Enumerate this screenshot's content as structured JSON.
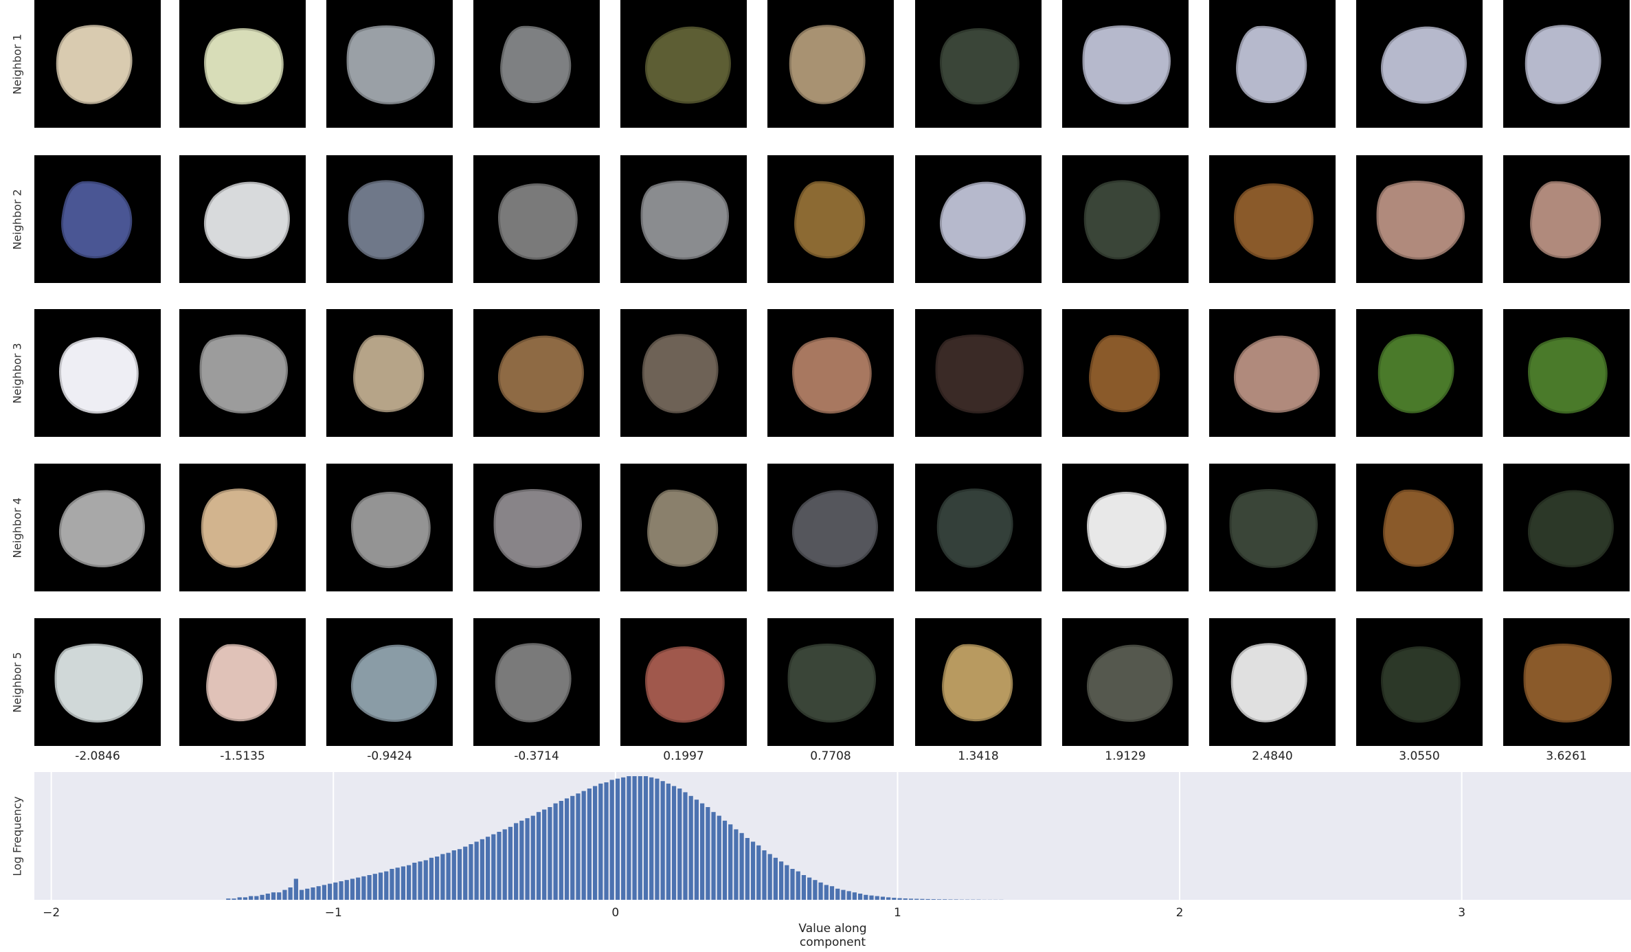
{
  "figure": {
    "row_labels": [
      "Neighbor 1",
      "Neighbor 2",
      "Neighbor 3",
      "Neighbor 4",
      "Neighbor 5"
    ],
    "column_values": [
      "-2.0846",
      "-1.5135",
      "-0.9424",
      "-0.3714",
      "0.1997",
      "0.7708",
      "1.3418",
      "1.9129",
      "2.4840",
      "3.0550",
      "3.6261"
    ],
    "tiles": [
      [
        "#d9cbb0",
        "#d8ddb8",
        "#9aa0a6",
        "#7e8082",
        "#5d5e34",
        "#a89272",
        "#3a4538",
        "#b6b9cc",
        "#b6b9cc",
        "#b6b9cc",
        "#b6b9cc"
      ],
      [
        "#4a5694",
        "#d8dadc",
        "#6f7889",
        "#7a7a7a",
        "#8a8c8f",
        "#8c6a33",
        "#b6b9cc",
        "#3a4538",
        "#8a5a2a",
        "#b08a7c",
        "#b08a7c"
      ],
      [
        "#eeeef4",
        "#9c9c9c",
        "#b6a488",
        "#8e6a44",
        "#6e6256",
        "#a87860",
        "#3a2a26",
        "#8a5a2a",
        "#b08a7c",
        "#4a7a2a",
        "#4a7a2a"
      ],
      [
        "#a8a8a8",
        "#d2b48e",
        "#949494",
        "#888488",
        "#8a806c",
        "#55565c",
        "#34403a",
        "#e8e8e8",
        "#3a4538",
        "#8a5a2a",
        "#2c3828"
      ],
      [
        "#d0d8d8",
        "#e0c2b8",
        "#8a9ca6",
        "#7a7a7a",
        "#a0584c",
        "#3a4538",
        "#b89a60",
        "#55584e",
        "#e0e0e0",
        "#2c3828",
        "#8a5a2a"
      ]
    ]
  },
  "chart_data": {
    "type": "bar",
    "xlabel": "Value along component",
    "ylabel": "Log Frequency",
    "xlim": [
      -2.06,
      3.6
    ],
    "xticks": [
      "−2",
      "−1",
      "0",
      "1",
      "2",
      "3"
    ],
    "xtick_values": [
      -2,
      -1,
      0,
      1,
      2,
      3
    ],
    "grid": true,
    "bar_color": "#4c72b0",
    "background_color": "#e9eaf2",
    "bin_width": 0.02,
    "bins": [
      {
        "x": -1.38,
        "v": 0.01
      },
      {
        "x": -1.36,
        "v": 0.01
      },
      {
        "x": -1.34,
        "v": 0.02
      },
      {
        "x": -1.32,
        "v": 0.02
      },
      {
        "x": -1.3,
        "v": 0.03
      },
      {
        "x": -1.28,
        "v": 0.03
      },
      {
        "x": -1.26,
        "v": 0.04
      },
      {
        "x": -1.24,
        "v": 0.05
      },
      {
        "x": -1.22,
        "v": 0.06
      },
      {
        "x": -1.2,
        "v": 0.06
      },
      {
        "x": -1.18,
        "v": 0.08
      },
      {
        "x": -1.16,
        "v": 0.1
      },
      {
        "x": -1.14,
        "v": 0.17
      },
      {
        "x": -1.12,
        "v": 0.08
      },
      {
        "x": -1.1,
        "v": 0.09
      },
      {
        "x": -1.08,
        "v": 0.1
      },
      {
        "x": -1.06,
        "v": 0.11
      },
      {
        "x": -1.04,
        "v": 0.12
      },
      {
        "x": -1.02,
        "v": 0.13
      },
      {
        "x": -1.0,
        "v": 0.14
      },
      {
        "x": -0.98,
        "v": 0.15
      },
      {
        "x": -0.96,
        "v": 0.16
      },
      {
        "x": -0.94,
        "v": 0.17
      },
      {
        "x": -0.92,
        "v": 0.18
      },
      {
        "x": -0.9,
        "v": 0.19
      },
      {
        "x": -0.88,
        "v": 0.2
      },
      {
        "x": -0.86,
        "v": 0.21
      },
      {
        "x": -0.84,
        "v": 0.22
      },
      {
        "x": -0.82,
        "v": 0.23
      },
      {
        "x": -0.8,
        "v": 0.25
      },
      {
        "x": -0.78,
        "v": 0.26
      },
      {
        "x": -0.76,
        "v": 0.27
      },
      {
        "x": -0.74,
        "v": 0.28
      },
      {
        "x": -0.72,
        "v": 0.3
      },
      {
        "x": -0.7,
        "v": 0.31
      },
      {
        "x": -0.68,
        "v": 0.32
      },
      {
        "x": -0.66,
        "v": 0.34
      },
      {
        "x": -0.64,
        "v": 0.35
      },
      {
        "x": -0.62,
        "v": 0.37
      },
      {
        "x": -0.6,
        "v": 0.38
      },
      {
        "x": -0.58,
        "v": 0.4
      },
      {
        "x": -0.56,
        "v": 0.41
      },
      {
        "x": -0.54,
        "v": 0.43
      },
      {
        "x": -0.52,
        "v": 0.45
      },
      {
        "x": -0.5,
        "v": 0.47
      },
      {
        "x": -0.48,
        "v": 0.49
      },
      {
        "x": -0.46,
        "v": 0.51
      },
      {
        "x": -0.44,
        "v": 0.53
      },
      {
        "x": -0.42,
        "v": 0.55
      },
      {
        "x": -0.4,
        "v": 0.57
      },
      {
        "x": -0.38,
        "v": 0.59
      },
      {
        "x": -0.36,
        "v": 0.62
      },
      {
        "x": -0.34,
        "v": 0.64
      },
      {
        "x": -0.32,
        "v": 0.66
      },
      {
        "x": -0.3,
        "v": 0.68
      },
      {
        "x": -0.28,
        "v": 0.71
      },
      {
        "x": -0.26,
        "v": 0.73
      },
      {
        "x": -0.24,
        "v": 0.75
      },
      {
        "x": -0.22,
        "v": 0.78
      },
      {
        "x": -0.2,
        "v": 0.8
      },
      {
        "x": -0.18,
        "v": 0.82
      },
      {
        "x": -0.16,
        "v": 0.84
      },
      {
        "x": -0.14,
        "v": 0.86
      },
      {
        "x": -0.12,
        "v": 0.88
      },
      {
        "x": -0.1,
        "v": 0.9
      },
      {
        "x": -0.08,
        "v": 0.92
      },
      {
        "x": -0.06,
        "v": 0.94
      },
      {
        "x": -0.04,
        "v": 0.95
      },
      {
        "x": -0.02,
        "v": 0.97
      },
      {
        "x": 0.0,
        "v": 0.98
      },
      {
        "x": 0.02,
        "v": 0.99
      },
      {
        "x": 0.04,
        "v": 1.0
      },
      {
        "x": 0.06,
        "v": 1.0
      },
      {
        "x": 0.08,
        "v": 1.0
      },
      {
        "x": 0.1,
        "v": 1.0
      },
      {
        "x": 0.12,
        "v": 0.99
      },
      {
        "x": 0.14,
        "v": 0.98
      },
      {
        "x": 0.16,
        "v": 0.96
      },
      {
        "x": 0.18,
        "v": 0.94
      },
      {
        "x": 0.2,
        "v": 0.92
      },
      {
        "x": 0.22,
        "v": 0.9
      },
      {
        "x": 0.24,
        "v": 0.87
      },
      {
        "x": 0.26,
        "v": 0.84
      },
      {
        "x": 0.28,
        "v": 0.81
      },
      {
        "x": 0.3,
        "v": 0.78
      },
      {
        "x": 0.32,
        "v": 0.75
      },
      {
        "x": 0.34,
        "v": 0.71
      },
      {
        "x": 0.36,
        "v": 0.68
      },
      {
        "x": 0.38,
        "v": 0.64
      },
      {
        "x": 0.4,
        "v": 0.61
      },
      {
        "x": 0.42,
        "v": 0.57
      },
      {
        "x": 0.44,
        "v": 0.54
      },
      {
        "x": 0.46,
        "v": 0.5
      },
      {
        "x": 0.48,
        "v": 0.47
      },
      {
        "x": 0.5,
        "v": 0.44
      },
      {
        "x": 0.52,
        "v": 0.4
      },
      {
        "x": 0.54,
        "v": 0.37
      },
      {
        "x": 0.56,
        "v": 0.34
      },
      {
        "x": 0.58,
        "v": 0.31
      },
      {
        "x": 0.6,
        "v": 0.28
      },
      {
        "x": 0.62,
        "v": 0.25
      },
      {
        "x": 0.64,
        "v": 0.23
      },
      {
        "x": 0.66,
        "v": 0.2
      },
      {
        "x": 0.68,
        "v": 0.18
      },
      {
        "x": 0.7,
        "v": 0.16
      },
      {
        "x": 0.72,
        "v": 0.14
      },
      {
        "x": 0.74,
        "v": 0.12
      },
      {
        "x": 0.76,
        "v": 0.11
      },
      {
        "x": 0.78,
        "v": 0.09
      },
      {
        "x": 0.8,
        "v": 0.08
      },
      {
        "x": 0.82,
        "v": 0.07
      },
      {
        "x": 0.84,
        "v": 0.06
      },
      {
        "x": 0.86,
        "v": 0.05
      },
      {
        "x": 0.88,
        "v": 0.04
      },
      {
        "x": 0.9,
        "v": 0.035
      },
      {
        "x": 0.92,
        "v": 0.03
      },
      {
        "x": 0.94,
        "v": 0.025
      },
      {
        "x": 0.96,
        "v": 0.02
      },
      {
        "x": 0.98,
        "v": 0.016
      },
      {
        "x": 1.0,
        "v": 0.013
      },
      {
        "x": 1.02,
        "v": 0.011
      },
      {
        "x": 1.04,
        "v": 0.009
      },
      {
        "x": 1.06,
        "v": 0.008
      },
      {
        "x": 1.08,
        "v": 0.007
      },
      {
        "x": 1.1,
        "v": 0.006
      },
      {
        "x": 1.12,
        "v": 0.005
      },
      {
        "x": 1.14,
        "v": 0.004
      },
      {
        "x": 1.16,
        "v": 0.004
      },
      {
        "x": 1.18,
        "v": 0.003
      },
      {
        "x": 1.2,
        "v": 0.003
      },
      {
        "x": 1.22,
        "v": 0.002
      },
      {
        "x": 1.24,
        "v": 0.002
      },
      {
        "x": 1.26,
        "v": 0.002
      },
      {
        "x": 1.28,
        "v": 0.002
      },
      {
        "x": 1.3,
        "v": 0.001
      },
      {
        "x": 1.32,
        "v": 0.001
      },
      {
        "x": 1.34,
        "v": 0.001
      },
      {
        "x": 1.36,
        "v": 0.001
      }
    ]
  }
}
